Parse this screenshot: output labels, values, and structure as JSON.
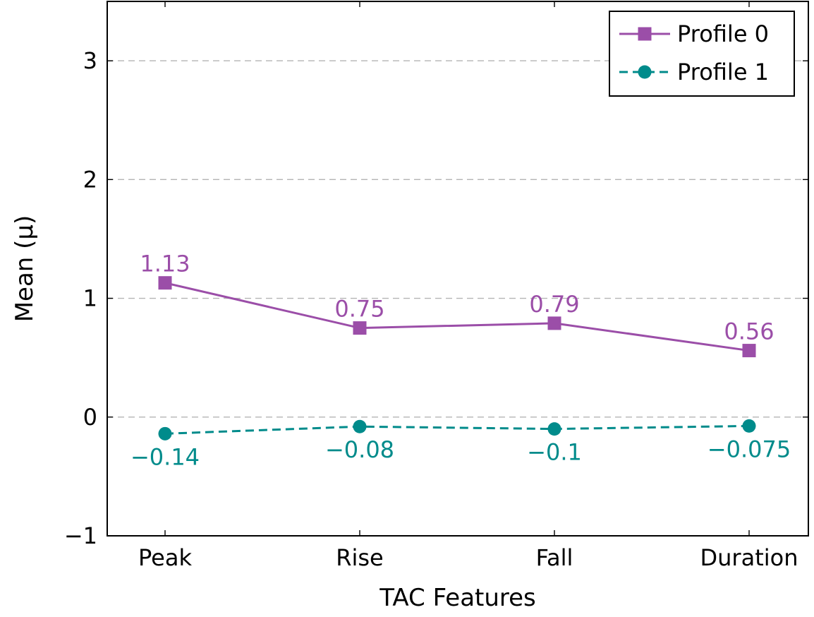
{
  "chart_data": {
    "type": "line",
    "title": "",
    "xlabel": "TAC Features",
    "ylabel": "Mean (μ)",
    "categories": [
      "Peak",
      "Rise",
      "Fall",
      "Duration"
    ],
    "ylim": [
      -1,
      3.5
    ],
    "yticks": [
      -1,
      0,
      1,
      2,
      3
    ],
    "ytick_labels": [
      "−1",
      "0",
      "1",
      "2",
      "3"
    ],
    "grid": "y-dashed",
    "legend_position": "top-right",
    "series": [
      {
        "name": "Profile 0",
        "values": [
          1.13,
          0.75,
          0.79,
          0.56
        ],
        "labels": [
          "1.13",
          "0.75",
          "0.79",
          "0.56"
        ],
        "color": "#9b4ea8",
        "marker": "square",
        "line_style": "solid"
      },
      {
        "name": "Profile 1",
        "values": [
          -0.14,
          -0.08,
          -0.1,
          -0.075
        ],
        "labels": [
          "−0.14",
          "−0.08",
          "−0.1",
          "−0.075"
        ],
        "color": "#008b8b",
        "marker": "circle",
        "line_style": "dashed"
      }
    ]
  }
}
